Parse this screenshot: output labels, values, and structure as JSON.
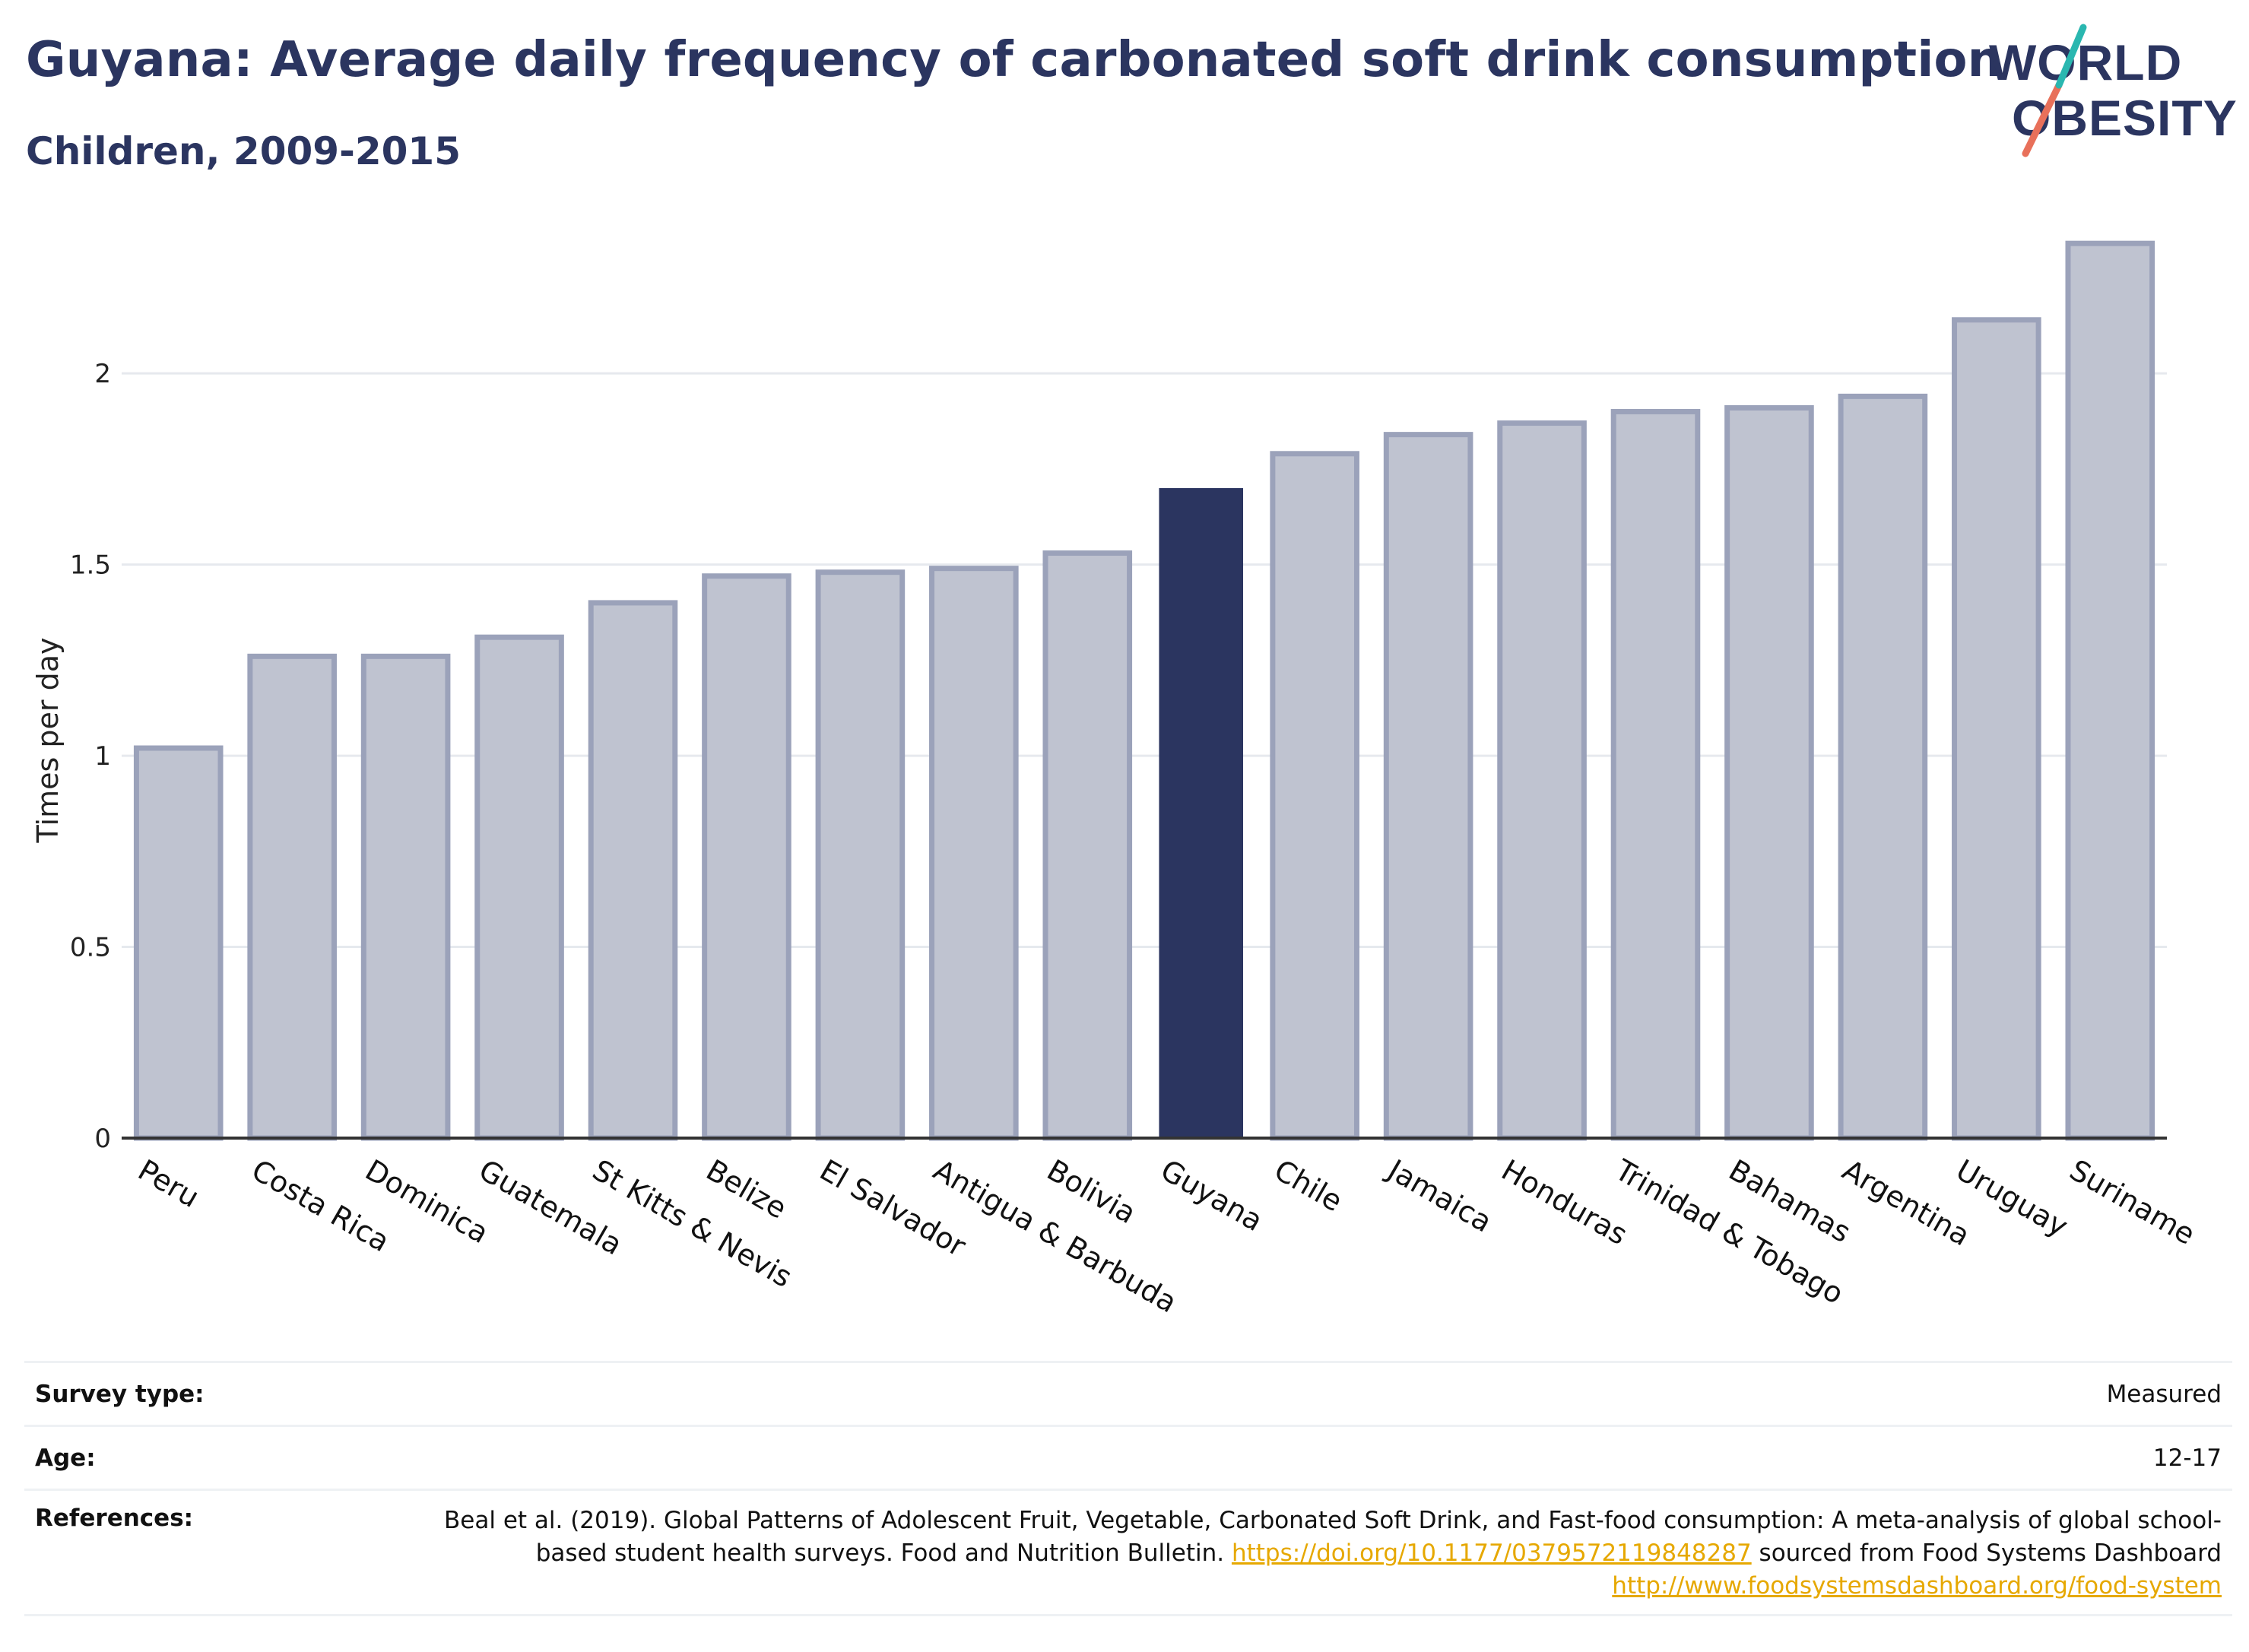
{
  "header": {
    "title": "Guyana: Average daily frequency of carbonated soft drink consumption",
    "subtitle": "Children, 2009-2015"
  },
  "logo": {
    "line1": "WORLD",
    "line2": "OBESITY"
  },
  "colors": {
    "highlight_bar": "#2b3560",
    "other_bar_fill": "#bfc3d0",
    "other_bar_border": "#9ba2ba",
    "grid": "#e6e9ee",
    "axis": "#333333",
    "logo_text": "#2b3560",
    "logo_slash_teal": "#2ab7b0",
    "logo_slash_red": "#e8705a",
    "link": "#e6a800"
  },
  "chart_data": {
    "type": "bar",
    "ylabel": "Times per day",
    "xlabel": "",
    "ylim": [
      0,
      2.4
    ],
    "yticks": [
      0,
      0.5,
      1,
      1.5,
      2
    ],
    "ytick_labels": [
      "0",
      "0.5",
      "1",
      "1.5",
      "2"
    ],
    "grid": true,
    "highlight": "Guyana",
    "categories": [
      "Peru",
      "Costa Rica",
      "Dominica",
      "Guatemala",
      "St Kitts & Nevis",
      "Belize",
      "El Salvador",
      "Antigua & Barbuda",
      "Bolivia",
      "Guyana",
      "Chile",
      "Jamaica",
      "Honduras",
      "Trinidad & Tobago",
      "Bahamas",
      "Argentina",
      "Uruguay",
      "Suriname"
    ],
    "values": [
      1.02,
      1.26,
      1.26,
      1.31,
      1.4,
      1.47,
      1.48,
      1.49,
      1.53,
      1.7,
      1.79,
      1.84,
      1.87,
      1.9,
      1.91,
      1.94,
      2.14,
      2.34
    ]
  },
  "meta": {
    "survey_type_label": "Survey type:",
    "survey_type_value": "Measured",
    "age_label": "Age:",
    "age_value": "12-17",
    "references_label": "References:",
    "references_text_1": "Beal et al. (2019). Global Patterns of Adolescent Fruit, Vegetable, Carbonated Soft Drink, and Fast-food consumption: A meta-analysis of global school-based student health surveys. Food and Nutrition Bulletin.",
    "references_link_1": "https://doi.org/10.1177/0379572119848287",
    "references_text_2": "sourced from Food Systems Dashboard",
    "references_link_2": "http://www.foodsystemsdashboard.org/food-system"
  }
}
